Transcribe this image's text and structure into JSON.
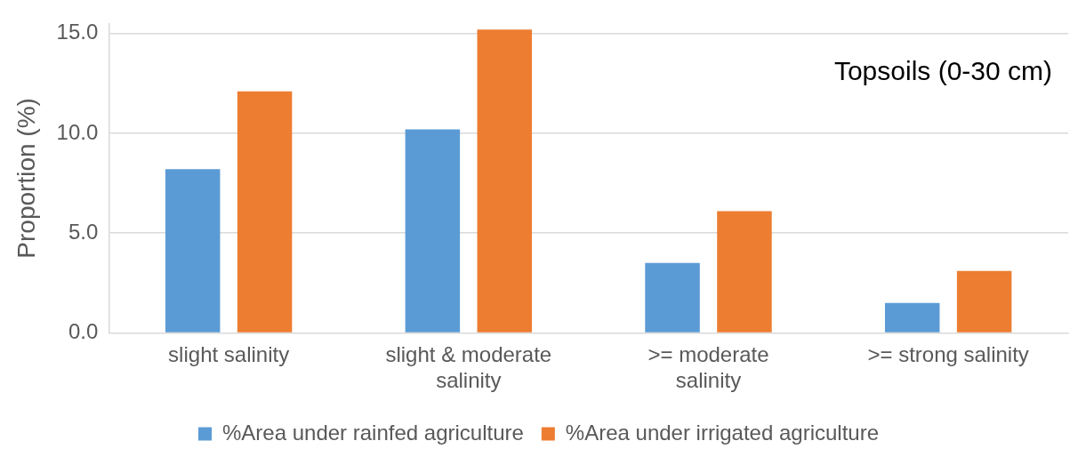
{
  "chart_data": {
    "type": "bar",
    "ylabel": "Proportion (%)",
    "categories": [
      "slight salinity",
      "slight & moderate salinity",
      ">= moderate salinity",
      ">= strong salinity"
    ],
    "series": [
      {
        "name": "%Area under rainfed agriculture",
        "color": "#5b9bd5",
        "values": [
          8.2,
          10.2,
          3.5,
          1.5
        ]
      },
      {
        "name": "%Area under irrigated agriculture",
        "color": "#ed7d31",
        "values": [
          12.1,
          15.2,
          6.1,
          3.1
        ]
      }
    ],
    "ylim": [
      0,
      15.5
    ],
    "yticks": [
      {
        "value": 0,
        "label": "0.0"
      },
      {
        "value": 5,
        "label": "5.0"
      },
      {
        "value": 10,
        "label": "10.0"
      },
      {
        "value": 15,
        "label": "15.0"
      }
    ],
    "grid": "y",
    "legend": "bottom",
    "annotations": [
      "Topsoils (0-30 cm)"
    ]
  }
}
